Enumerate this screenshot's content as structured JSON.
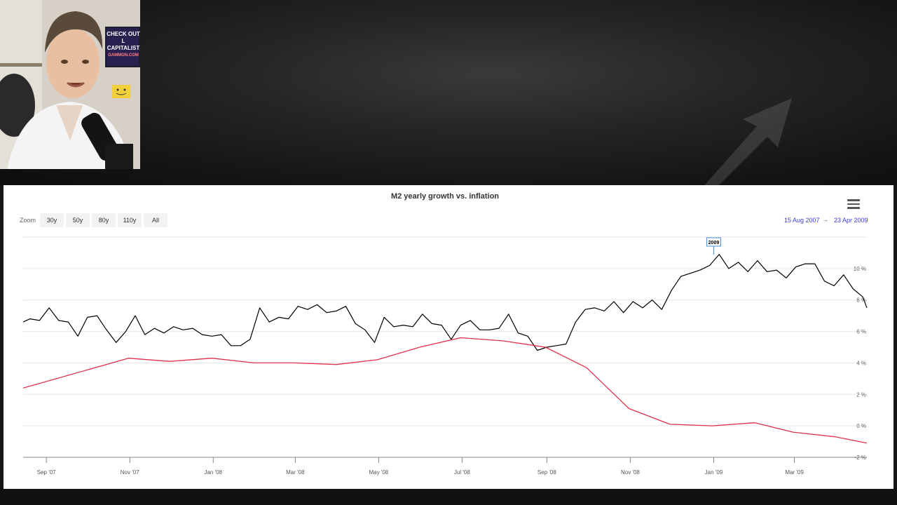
{
  "chart_data": {
    "type": "line",
    "title": "M2 yearly growth vs. inflation",
    "x_tick_labels": [
      "Sep '07",
      "Nov '07",
      "Jan '08",
      "Mar '08",
      "May '08",
      "Jul '08",
      "Sep '08",
      "Nov '08",
      "Jan '09",
      "Mar '09"
    ],
    "x_range": [
      "2007-08-15",
      "2009-04-23"
    ],
    "y_tick_labels": [
      "-2 %",
      "0 %",
      "2 %",
      "4 %",
      "6 %",
      "8 %",
      "10 %"
    ],
    "ylim": [
      -2,
      12
    ],
    "y_axis_position": "right",
    "grid": true,
    "annotation": {
      "label": "2009",
      "x": "2009-01-01"
    },
    "series": [
      {
        "color": "#000000",
        "points": [
          [
            "2007-08-15",
            6.6
          ],
          [
            "2007-08-20",
            6.8
          ],
          [
            "2007-08-27",
            6.7
          ],
          [
            "2007-09-03",
            7.5
          ],
          [
            "2007-09-10",
            6.7
          ],
          [
            "2007-09-17",
            6.6
          ],
          [
            "2007-09-24",
            5.7
          ],
          [
            "2007-10-01",
            6.9
          ],
          [
            "2007-10-08",
            7.0
          ],
          [
            "2007-10-15",
            6.1
          ],
          [
            "2007-10-22",
            5.3
          ],
          [
            "2007-10-29",
            6.0
          ],
          [
            "2007-11-05",
            7.0
          ],
          [
            "2007-11-12",
            5.8
          ],
          [
            "2007-11-19",
            6.2
          ],
          [
            "2007-11-26",
            5.9
          ],
          [
            "2007-12-03",
            6.3
          ],
          [
            "2007-12-10",
            6.1
          ],
          [
            "2007-12-17",
            6.2
          ],
          [
            "2007-12-24",
            5.8
          ],
          [
            "2007-12-31",
            5.7
          ],
          [
            "2008-01-07",
            5.8
          ],
          [
            "2008-01-14",
            5.1
          ],
          [
            "2008-01-21",
            5.1
          ],
          [
            "2008-01-28",
            5.5
          ],
          [
            "2008-02-04",
            7.5
          ],
          [
            "2008-02-11",
            6.6
          ],
          [
            "2008-02-18",
            6.9
          ],
          [
            "2008-02-25",
            6.8
          ],
          [
            "2008-03-03",
            7.6
          ],
          [
            "2008-03-10",
            7.4
          ],
          [
            "2008-03-17",
            7.7
          ],
          [
            "2008-03-24",
            7.2
          ],
          [
            "2008-03-31",
            7.3
          ],
          [
            "2008-04-07",
            7.6
          ],
          [
            "2008-04-14",
            6.5
          ],
          [
            "2008-04-21",
            6.1
          ],
          [
            "2008-04-28",
            5.3
          ],
          [
            "2008-05-05",
            6.9
          ],
          [
            "2008-05-12",
            6.3
          ],
          [
            "2008-05-19",
            6.4
          ],
          [
            "2008-05-26",
            6.3
          ],
          [
            "2008-06-02",
            7.1
          ],
          [
            "2008-06-09",
            6.5
          ],
          [
            "2008-06-16",
            6.4
          ],
          [
            "2008-06-23",
            5.5
          ],
          [
            "2008-06-30",
            6.4
          ],
          [
            "2008-07-07",
            6.7
          ],
          [
            "2008-07-14",
            6.1
          ],
          [
            "2008-07-21",
            6.1
          ],
          [
            "2008-07-28",
            6.2
          ],
          [
            "2008-08-04",
            7.1
          ],
          [
            "2008-08-11",
            5.9
          ],
          [
            "2008-08-18",
            5.7
          ],
          [
            "2008-08-25",
            4.8
          ],
          [
            "2008-09-01",
            5.0
          ],
          [
            "2008-09-08",
            5.1
          ],
          [
            "2008-09-15",
            5.2
          ],
          [
            "2008-09-22",
            6.6
          ],
          [
            "2008-09-29",
            7.4
          ],
          [
            "2008-10-06",
            7.5
          ],
          [
            "2008-10-13",
            7.3
          ],
          [
            "2008-10-20",
            7.9
          ],
          [
            "2008-10-27",
            7.2
          ],
          [
            "2008-11-03",
            7.9
          ],
          [
            "2008-11-10",
            7.5
          ],
          [
            "2008-11-17",
            8.0
          ],
          [
            "2008-11-24",
            7.4
          ],
          [
            "2008-12-01",
            8.6
          ],
          [
            "2008-12-08",
            9.5
          ],
          [
            "2008-12-15",
            9.7
          ],
          [
            "2008-12-22",
            9.9
          ],
          [
            "2008-12-29",
            10.2
          ],
          [
            "2009-01-05",
            10.9
          ],
          [
            "2009-01-12",
            10.0
          ],
          [
            "2009-01-19",
            10.4
          ],
          [
            "2009-01-26",
            9.8
          ],
          [
            "2009-02-02",
            10.5
          ],
          [
            "2009-02-09",
            9.8
          ],
          [
            "2009-02-16",
            9.9
          ],
          [
            "2009-02-23",
            9.4
          ],
          [
            "2009-03-02",
            10.1
          ],
          [
            "2009-03-09",
            10.3
          ],
          [
            "2009-03-16",
            10.3
          ],
          [
            "2009-03-23",
            9.2
          ],
          [
            "2009-03-30",
            8.9
          ],
          [
            "2009-04-06",
            9.6
          ],
          [
            "2009-04-13",
            8.7
          ],
          [
            "2009-04-20",
            8.2
          ],
          [
            "2009-04-23",
            7.5
          ]
        ]
      },
      {
        "color": "#e0304a",
        "points": [
          [
            "2007-08-15",
            2.4
          ],
          [
            "2007-10-31",
            4.3
          ],
          [
            "2007-11-30",
            4.1
          ],
          [
            "2007-12-31",
            4.3
          ],
          [
            "2008-01-31",
            4.0
          ],
          [
            "2008-02-29",
            4.0
          ],
          [
            "2008-03-31",
            3.9
          ],
          [
            "2008-04-30",
            4.2
          ],
          [
            "2008-05-31",
            5.0
          ],
          [
            "2008-06-30",
            5.6
          ],
          [
            "2008-07-31",
            5.4
          ],
          [
            "2008-08-31",
            5.0
          ],
          [
            "2008-09-30",
            3.7
          ],
          [
            "2008-10-31",
            1.1
          ],
          [
            "2008-11-30",
            0.1
          ],
          [
            "2008-12-31",
            0.0
          ],
          [
            "2009-01-31",
            0.2
          ],
          [
            "2009-02-28",
            -0.4
          ],
          [
            "2009-03-31",
            -0.7
          ],
          [
            "2009-04-23",
            -1.1
          ]
        ]
      }
    ]
  },
  "toolbar": {
    "zoom_label": "Zoom",
    "zoom_buttons": [
      "30y",
      "50y",
      "80y",
      "110y",
      "All"
    ],
    "range_from": "15 Aug 2007",
    "range_arrow": "→",
    "range_to": "23 Apr 2009"
  },
  "webcam_sign": {
    "line1": "CHECK OUT",
    "line2": "L CAPITALIST",
    "line3": "GAMMON.COM"
  },
  "colors": {
    "accent": "#3b3bd4",
    "series1": "#000000",
    "series2": "#e0304a"
  },
  "icons": {
    "menu": "hamburger-menu-icon"
  }
}
